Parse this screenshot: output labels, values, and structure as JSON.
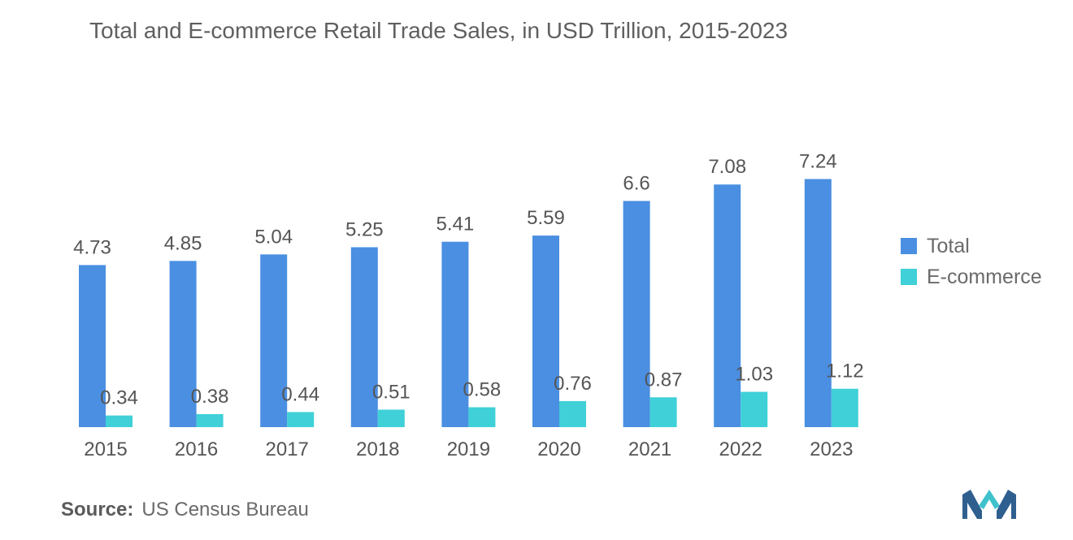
{
  "title": "Total and E-commerce Retail Trade Sales, in USD Trillion, 2015-2023",
  "source_label": "Source:",
  "source_value": "US Census Bureau",
  "colors": {
    "total": "#4a8fe2",
    "ecommerce": "#3fd0d8"
  },
  "chart_data": {
    "type": "bar",
    "categories": [
      "2015",
      "2016",
      "2017",
      "2018",
      "2019",
      "2020",
      "2021",
      "2022",
      "2023"
    ],
    "series": [
      {
        "name": "Total",
        "values": [
          4.73,
          4.85,
          5.04,
          5.25,
          5.41,
          5.59,
          6.6,
          7.08,
          7.24
        ]
      },
      {
        "name": "E-commerce",
        "values": [
          0.34,
          0.38,
          0.44,
          0.51,
          0.58,
          0.76,
          0.87,
          1.03,
          1.12
        ]
      }
    ],
    "ylim": [
      0,
      8
    ],
    "grid": false,
    "legend_position": "right"
  }
}
